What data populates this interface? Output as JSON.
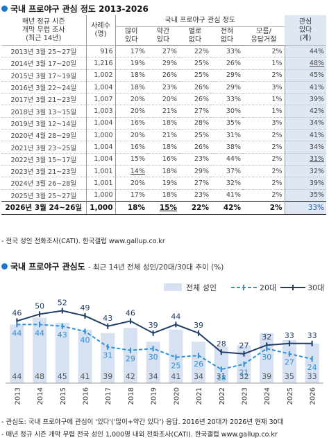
{
  "table": {
    "title": "국내 프로야구 관심 정도 2013-2026",
    "header": {
      "period_lines": [
        "매년 정규 시즌",
        "개막 무렵 조사",
        "(최근 14년)"
      ],
      "cases_lines": [
        "사례수",
        "(명)"
      ],
      "group": "국내 프로야구 관심 정도",
      "cols": [
        [
          "많이",
          "있다"
        ],
        [
          "약간",
          "있다"
        ],
        [
          "별로",
          "없다"
        ],
        [
          "전혀",
          "없다"
        ],
        [
          "모름/",
          "응답거절"
        ]
      ],
      "last_lines": [
        "관심",
        "있다",
        "(계)"
      ]
    },
    "rows": [
      {
        "period": "2013년 3월 25~27일",
        "n": "916",
        "v": [
          "17%",
          "27%",
          "22%",
          "33%",
          "2%"
        ],
        "total": "44%"
      },
      {
        "period": "2014년 3월 17~20일",
        "n": "1,216",
        "v": [
          "19%",
          "29%",
          "25%",
          "26%",
          "1%"
        ],
        "total": "48%"
      },
      {
        "period": "2015년 3월 17~19일",
        "n": "1,002",
        "v": [
          "18%",
          "26%",
          "25%",
          "29%",
          "2%"
        ],
        "total": "45%"
      },
      {
        "period": "2016년 3월 22~24일",
        "n": "1,004",
        "v": [
          "18%",
          "23%",
          "26%",
          "29%",
          "3%"
        ],
        "total": "41%"
      },
      {
        "period": "2017년 3월 21~23일",
        "n": "1,007",
        "v": [
          "20%",
          "20%",
          "26%",
          "33%",
          "1%"
        ],
        "total": "39%"
      },
      {
        "period": "2018년 3월 13~15일",
        "n": "1,003",
        "v": [
          "20%",
          "21%",
          "27%",
          "30%",
          "1%"
        ],
        "total": "42%"
      },
      {
        "period": "2019년 3월 12~14일",
        "n": "1,004",
        "v": [
          "16%",
          "18%",
          "28%",
          "35%",
          "3%"
        ],
        "total": "34%"
      },
      {
        "period": "2020년 4월 28~29일",
        "n": "1,000",
        "v": [
          "20%",
          "21%",
          "25%",
          "31%",
          "2%"
        ],
        "total": "41%"
      },
      {
        "period": "2021년 3월 23~25일",
        "n": "1,004",
        "v": [
          "16%",
          "18%",
          "26%",
          "38%",
          "2%"
        ],
        "total": "34%"
      },
      {
        "period": "2022년 3월 15~17일",
        "n": "1,004",
        "v": [
          "15%",
          "16%",
          "23%",
          "44%",
          "2%"
        ],
        "total": "31%"
      },
      {
        "period": "2023년 3월 21~23일",
        "n": "1,001",
        "v": [
          "14%",
          "18%",
          "29%",
          "37%",
          "2%"
        ],
        "total": "32%"
      },
      {
        "period": "2024년 3월 26~28일",
        "n": "1,001",
        "v": [
          "20%",
          "19%",
          "27%",
          "32%",
          "2%"
        ],
        "total": "39%"
      },
      {
        "period": "2025년 3월 25~27일",
        "n": "1,000",
        "v": [
          "17%",
          "18%",
          "23%",
          "41%",
          "2%"
        ],
        "total": "35%"
      }
    ],
    "final": {
      "period": "2026년 3월 24~26일",
      "n": "1,000",
      "v": [
        "18%",
        "15%",
        "22%",
        "42%",
        "2%"
      ],
      "total": "33%"
    },
    "note": "- 전국 성인 전화조사(CATI). 한국갤럽 www.gallup.co.kr"
  },
  "chart_title": "국내 프로야구 관심도",
  "chart_subtitle": "- 최근 14년 전체 성인/20대/30대 추이 (%)",
  "colors": {
    "bar": "#d6e2f2",
    "s20": "#2e8fd6",
    "s30": "#1f3b66",
    "accent_red": "#c0392b",
    "blue_text": "#1f5fb0"
  },
  "chart_data": {
    "type": "bar",
    "categories": [
      "2013",
      "2014",
      "2015",
      "2016",
      "2017",
      "2018",
      "2019",
      "2020",
      "2021",
      "2022",
      "2023",
      "2024",
      "2025",
      "2026"
    ],
    "series": [
      {
        "name": "전체 성인",
        "type": "bar",
        "values": [
          44,
          48,
          45,
          41,
          39,
          42,
          34,
          41,
          34,
          31,
          32,
          39,
          35,
          33
        ]
      },
      {
        "name": "20대",
        "type": "line",
        "values": [
          44,
          44,
          43,
          40,
          31,
          29,
          30,
          25,
          26,
          18,
          21,
          30,
          27,
          24
        ]
      },
      {
        "name": "30대",
        "type": "line",
        "values": [
          46,
          50,
          52,
          49,
          43,
          46,
          39,
          44,
          39,
          28,
          27,
          32,
          33,
          33
        ]
      }
    ],
    "legend": "top-right",
    "ylim": [
      0,
      60
    ],
    "grid": false
  },
  "footnotes": [
    "- 관심도: 국내 프로야구에 관심이 '있다'('많이+약간 있다') 응답. 2016년 20대가 2026년 현재 30대",
    "- 매년 정규 시즌 개막 무렵 전국 성인 1,000명 내외 전화조사(CATI). 한국갤럽 www.gallup.co.kr"
  ]
}
